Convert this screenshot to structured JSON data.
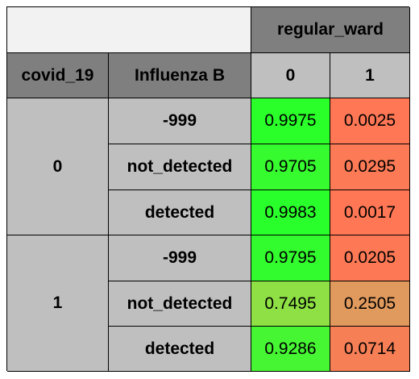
{
  "table": {
    "column_group": "regular_ward",
    "index_names": [
      "covid_19",
      "Influenza B"
    ],
    "column_labels": [
      "0",
      "1"
    ],
    "groups": [
      {
        "covid_19": "0",
        "rows": [
          {
            "influenza_b": "-999",
            "values": [
              "0.9975",
              "0.0025"
            ],
            "colors": [
              "#2aff2a",
              "#ff7755"
            ]
          },
          {
            "influenza_b": "not_detected",
            "values": [
              "0.9705",
              "0.0295"
            ],
            "colors": [
              "#36fb2e",
              "#fc7a55"
            ]
          },
          {
            "influenza_b": "detected",
            "values": [
              "0.9983",
              "0.0017"
            ],
            "colors": [
              "#29ff2a",
              "#ff7755"
            ]
          }
        ]
      },
      {
        "covid_19": "1",
        "rows": [
          {
            "influenza_b": "-999",
            "values": [
              "0.9795",
              "0.0205"
            ],
            "colors": [
              "#32fc2d",
              "#fd7955"
            ]
          },
          {
            "influenza_b": "not_detected",
            "values": [
              "0.7495",
              "0.2505"
            ],
            "colors": [
              "#8ee044",
              "#e09a5e"
            ]
          },
          {
            "influenza_b": "detected",
            "values": [
              "0.9286",
              "0.0714"
            ],
            "colors": [
              "#46f633",
              "#f67f56"
            ]
          }
        ]
      }
    ]
  }
}
